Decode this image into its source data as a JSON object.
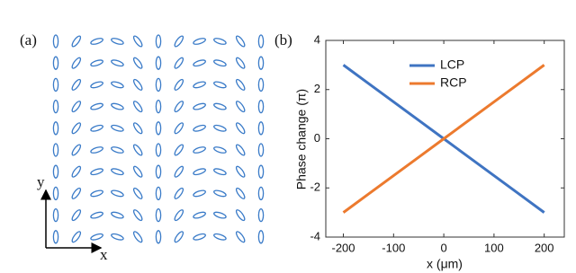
{
  "panel_a": {
    "label": "(a)",
    "x_axis": "x",
    "y_axis": "y"
  },
  "chart_data": {
    "type": "line",
    "label": "(b)",
    "xlabel": "x (μm)",
    "ylabel": "Phase change (π)",
    "x": [
      -200,
      -150,
      -100,
      -50,
      0,
      50,
      100,
      150,
      200
    ],
    "series": [
      {
        "name": "LCP",
        "color": "#3f74c2",
        "values": [
          3,
          2.25,
          1.5,
          0.75,
          0,
          -0.75,
          -1.5,
          -2.25,
          -3
        ]
      },
      {
        "name": "RCP",
        "color": "#ec7a2e",
        "values": [
          -3,
          -2.25,
          -1.5,
          -0.75,
          0,
          0.75,
          1.5,
          2.25,
          3
        ]
      }
    ],
    "xlim": [
      -235,
      240
    ],
    "ylim": [
      -4,
      4
    ],
    "xticks": [
      -200,
      -100,
      0,
      100,
      200
    ],
    "yticks": [
      -4,
      -2,
      0,
      2,
      4
    ],
    "legend": "upper center"
  }
}
